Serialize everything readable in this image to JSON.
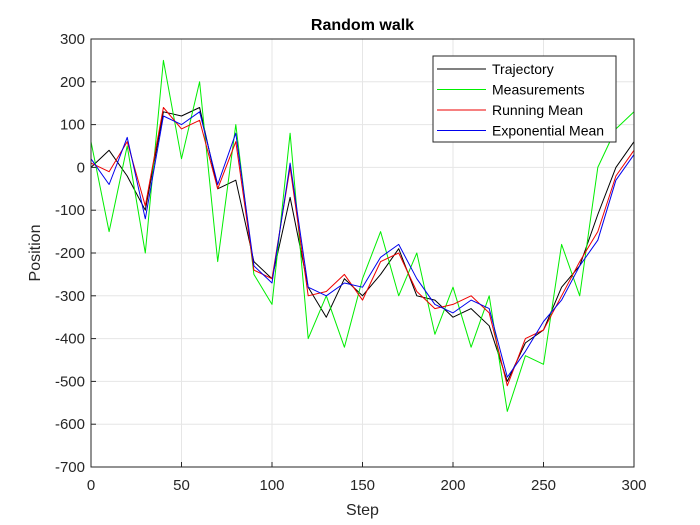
{
  "chart_data": {
    "type": "line",
    "title": "Random walk",
    "xlabel": "Step",
    "ylabel": "Position",
    "xlim": [
      0,
      300
    ],
    "ylim": [
      -700,
      300
    ],
    "xticks": [
      0,
      50,
      100,
      150,
      200,
      250,
      300
    ],
    "yticks": [
      -700,
      -600,
      -500,
      -400,
      -300,
      -200,
      -100,
      0,
      100,
      200,
      300
    ],
    "grid": true,
    "legend_position": "top-right",
    "x": [
      0,
      10,
      20,
      30,
      40,
      50,
      60,
      70,
      80,
      90,
      100,
      110,
      120,
      130,
      140,
      150,
      160,
      170,
      180,
      190,
      200,
      210,
      220,
      230,
      240,
      250,
      260,
      270,
      280,
      290,
      300
    ],
    "series": [
      {
        "name": "Trajectory",
        "color": "#000000",
        "values": [
          0,
          40,
          -20,
          -100,
          130,
          120,
          140,
          -50,
          -30,
          -220,
          -260,
          -70,
          -280,
          -350,
          -260,
          -300,
          -250,
          -190,
          -300,
          -310,
          -350,
          -330,
          -370,
          -500,
          -410,
          -380,
          -280,
          -230,
          -110,
          0,
          60
        ]
      },
      {
        "name": "Measurements",
        "color": "#00ee00",
        "values": [
          60,
          -150,
          50,
          -200,
          250,
          20,
          200,
          -220,
          100,
          -250,
          -320,
          80,
          -400,
          -300,
          -420,
          -260,
          -150,
          -300,
          -200,
          -390,
          -280,
          -420,
          -300,
          -570,
          -440,
          -460,
          -180,
          -300,
          0,
          90,
          130
        ]
      },
      {
        "name": "Running Mean",
        "color": "#ee0000",
        "values": [
          10,
          -10,
          60,
          -90,
          140,
          90,
          110,
          -50,
          60,
          -240,
          -260,
          0,
          -300,
          -290,
          -250,
          -310,
          -220,
          -200,
          -290,
          -330,
          -320,
          -300,
          -340,
          -510,
          -400,
          -380,
          -300,
          -220,
          -150,
          -20,
          40
        ]
      },
      {
        "name": "Exponential Mean",
        "color": "#0000ee",
        "values": [
          20,
          -40,
          70,
          -120,
          120,
          100,
          130,
          -40,
          80,
          -230,
          -270,
          10,
          -280,
          -300,
          -270,
          -280,
          -210,
          -180,
          -260,
          -320,
          -340,
          -310,
          -330,
          -490,
          -430,
          -360,
          -310,
          -230,
          -170,
          -30,
          30
        ]
      }
    ]
  }
}
